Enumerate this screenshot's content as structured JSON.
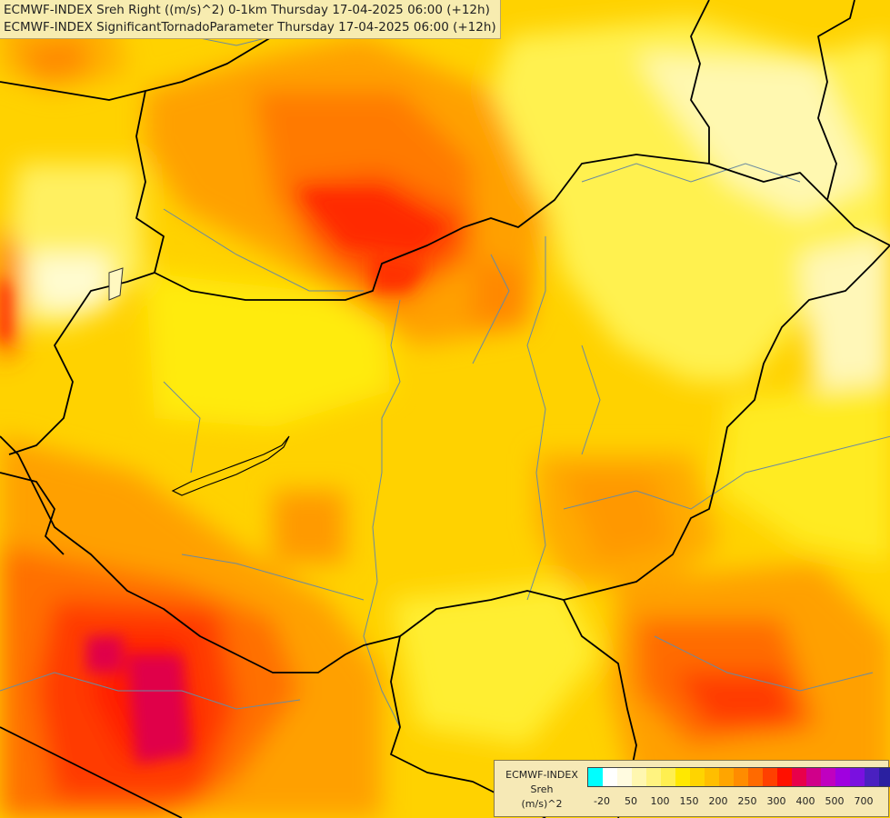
{
  "title": {
    "line1": "ECMWF-INDEX Sreh Right ((m/s)^2) 0-1km Thursday 17-04-2025 06:00 (+12h)",
    "line2": "ECMWF-INDEX SignificantTornadoParameter Thursday 17-04-2025 06:00 (+12h)"
  },
  "legend": {
    "model": "ECMWF-INDEX",
    "variable": "Sreh",
    "unit": "(m/s)^2",
    "colors": [
      "#00ffff",
      "#ffffff",
      "#fffbe0",
      "#fff7b0",
      "#fff380",
      "#ffef50",
      "#ffe800",
      "#ffd400",
      "#ffbe00",
      "#ffa500",
      "#ff8c00",
      "#ff6a00",
      "#ff4000",
      "#ff1000",
      "#e8004a",
      "#d0008a",
      "#c000c0",
      "#a000e0",
      "#7a10e0",
      "#4a20c0",
      "#2a20a0",
      "#1a1080"
    ],
    "ticks": [
      "-20",
      "50",
      "100",
      "150",
      "200",
      "250",
      "300",
      "400",
      "500",
      "700"
    ]
  },
  "palette": {
    "background": "#ffd200",
    "border": "#000000",
    "river": "#6a8aa0"
  }
}
